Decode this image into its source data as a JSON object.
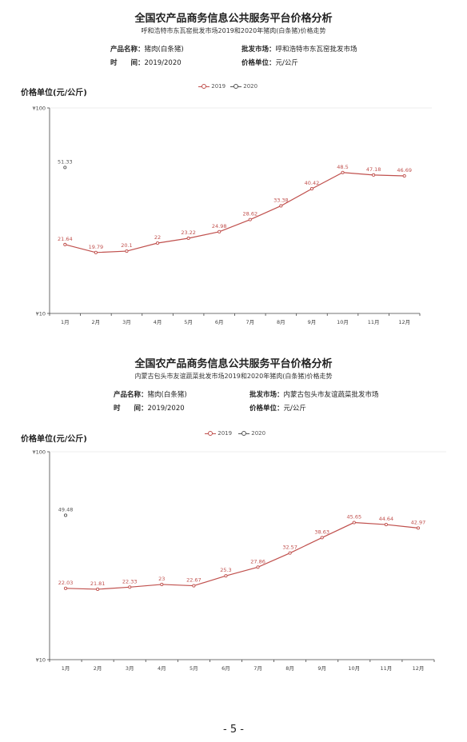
{
  "page_number": "- 5 -",
  "legend_colors": {
    "2019": "#c0504d",
    "2020": "#555555"
  },
  "sections": [
    {
      "title": "全国农产品商务信息公共服务平台价格分析",
      "subtitle": "呼和浩特市东瓦窑批发市场2019和2020年猪肉(白条猪)价格走势",
      "product_label": "产品名称：",
      "product_value": "猪肉(白条猪)",
      "market_label": "批发市场：",
      "market_value": "呼和浩特市东瓦窑批发市场",
      "time_label": "时　　间：",
      "time_value": "2019/2020",
      "unit_label": "价格单位：",
      "unit_value": "元/公斤",
      "price_unit_heading": "价格单位(元/公斤)"
    },
    {
      "title": "全国农产品商务信息公共服务平台价格分析",
      "subtitle": "内蒙古包头市友谊蔬菜批发市场2019和2020年猪肉(白条猪)价格走势",
      "product_label": "产品名称：",
      "product_value": "猪肉(白条猪)",
      "market_label": "批发市场：",
      "market_value": "内蒙古包头市友谊蔬菜批发市场",
      "time_label": "时　　间：",
      "time_value": "2019/2020",
      "unit_label": "价格单位：",
      "unit_value": "元/公斤",
      "price_unit_heading": "价格单位(元/公斤)"
    }
  ],
  "chart_data": [
    {
      "type": "line",
      "y_scale": "log",
      "ylim": [
        10,
        100
      ],
      "y_tick_labels": [
        "¥100",
        "¥10"
      ],
      "categories": [
        "1月",
        "2月",
        "3月",
        "4月",
        "5月",
        "6月",
        "7月",
        "8月",
        "9月",
        "10月",
        "11月",
        "12月"
      ],
      "series": [
        {
          "name": "2019",
          "color": "#c0504d",
          "values": [
            21.64,
            19.79,
            20.1,
            22,
            23.22,
            24.98,
            28.62,
            33.38,
            40.42,
            48.5,
            47.18,
            46.69
          ]
        },
        {
          "name": "2020",
          "color": "#555555",
          "values": [
            51.33,
            null,
            null,
            null,
            null,
            null,
            null,
            null,
            null,
            null,
            null,
            null
          ]
        }
      ],
      "labels": [
        [
          "21.64",
          "19.79",
          "20.1",
          "22",
          "23.22",
          "24.98",
          "28.62",
          "33.38",
          "40.42",
          "48.5",
          "47.18",
          "46.69"
        ],
        [
          "51.33"
        ]
      ]
    },
    {
      "type": "line",
      "y_scale": "log",
      "ylim": [
        10,
        100
      ],
      "y_tick_labels": [
        "¥100",
        "¥10"
      ],
      "categories": [
        "1月",
        "2月",
        "3月",
        "4月",
        "5月",
        "6月",
        "7月",
        "8月",
        "9月",
        "10月",
        "11月",
        "12月"
      ],
      "series": [
        {
          "name": "2019",
          "color": "#c0504d",
          "values": [
            22.03,
            21.81,
            22.33,
            23,
            22.67,
            25.3,
            27.86,
            32.57,
            38.63,
            45.65,
            44.64,
            42.97
          ]
        },
        {
          "name": "2020",
          "color": "#555555",
          "values": [
            49.48,
            null,
            null,
            null,
            null,
            null,
            null,
            null,
            null,
            null,
            null,
            null
          ]
        }
      ],
      "labels": [
        [
          "22.03",
          "21.81",
          "22.33",
          "23",
          "22.67",
          "25.3",
          "27.86",
          "32.57",
          "38.63",
          "45.65",
          "44.64",
          "42.97"
        ],
        [
          "49.48"
        ]
      ]
    }
  ]
}
